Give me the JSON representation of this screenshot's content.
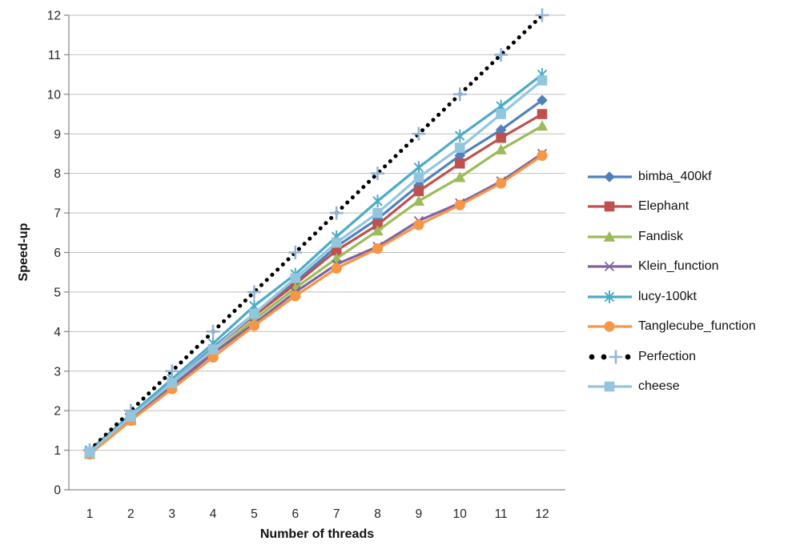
{
  "chart_data": {
    "type": "line",
    "title": "",
    "xlabel": "Number of threads",
    "ylabel": "Speed-up",
    "x": [
      1,
      2,
      3,
      4,
      5,
      6,
      7,
      8,
      9,
      10,
      11,
      12
    ],
    "x_ticks": [
      "1",
      "2",
      "3",
      "4",
      "5",
      "6",
      "7",
      "8",
      "9",
      "10",
      "11",
      "12"
    ],
    "y_ticks": [
      "0",
      "1",
      "2",
      "3",
      "4",
      "5",
      "6",
      "7",
      "8",
      "9",
      "10",
      "11",
      "12"
    ],
    "xlim": [
      1,
      12
    ],
    "ylim": [
      0,
      12
    ],
    "grid": "horizontal-only",
    "legend_position": "right",
    "series": [
      {
        "name": "bimba_400kf",
        "color": "#4F81BD",
        "marker": "diamond",
        "line": "solid",
        "values": [
          0.95,
          1.85,
          2.7,
          3.6,
          4.45,
          5.25,
          6.15,
          6.85,
          7.7,
          8.45,
          9.1,
          9.85
        ]
      },
      {
        "name": "Elephant",
        "color": "#C0504D",
        "marker": "square",
        "line": "solid",
        "values": [
          0.95,
          1.8,
          2.65,
          3.55,
          4.4,
          5.2,
          6.05,
          6.7,
          7.55,
          8.25,
          8.9,
          9.5
        ]
      },
      {
        "name": "Fandisk",
        "color": "#9BBB59",
        "marker": "triangle",
        "line": "solid",
        "values": [
          0.9,
          1.75,
          2.6,
          3.45,
          4.3,
          5.1,
          5.85,
          6.55,
          7.3,
          7.9,
          8.6,
          9.2
        ]
      },
      {
        "name": "Klein_function",
        "color": "#8064A2",
        "marker": "x",
        "line": "solid",
        "values": [
          0.95,
          1.8,
          2.6,
          3.45,
          4.2,
          5.0,
          5.7,
          6.15,
          6.8,
          7.25,
          7.8,
          8.5
        ]
      },
      {
        "name": "lucy-100kt",
        "color": "#4BACC6",
        "marker": "asterisk",
        "line": "solid",
        "values": [
          1.0,
          1.9,
          2.8,
          3.7,
          4.65,
          5.45,
          6.4,
          7.3,
          8.15,
          8.95,
          9.7,
          10.5
        ]
      },
      {
        "name": "Tanglecube_function",
        "color": "#F79646",
        "marker": "circle",
        "line": "solid",
        "values": [
          0.9,
          1.75,
          2.55,
          3.35,
          4.15,
          4.9,
          5.6,
          6.1,
          6.7,
          7.2,
          7.75,
          8.45
        ]
      },
      {
        "name": "Perfection",
        "color": "#000000",
        "marker": "plus",
        "marker_color": "#95B3D7",
        "line": "dotted",
        "values": [
          1,
          2,
          3,
          4,
          5,
          6,
          7,
          8,
          9,
          10,
          11,
          12
        ]
      },
      {
        "name": "cheese",
        "color": "#93C6DE",
        "marker": "square",
        "line": "solid",
        "values": [
          0.95,
          1.85,
          2.7,
          3.55,
          4.45,
          5.35,
          6.25,
          7.0,
          7.9,
          8.65,
          9.5,
          10.35
        ]
      }
    ],
    "colors": {
      "background": "#FFFFFF",
      "gridline": "#BFBFBF",
      "axis": "#8C8C8C",
      "tick_text": "#262626"
    }
  }
}
